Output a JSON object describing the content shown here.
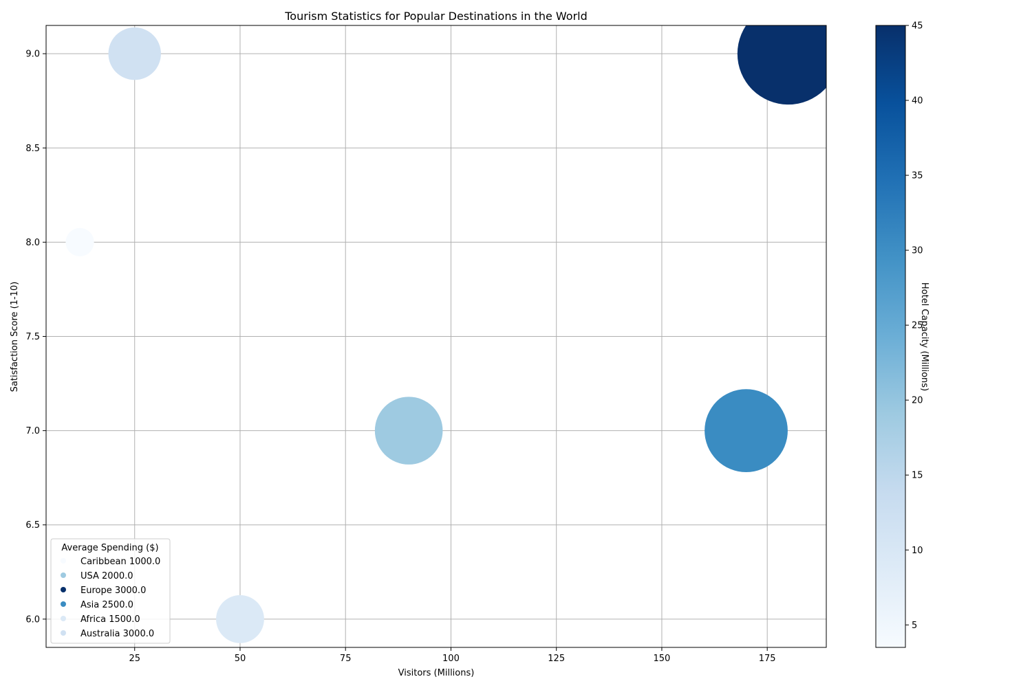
{
  "chart_data": {
    "type": "scatter",
    "title": "Tourism Statistics for Popular Destinations in the World",
    "xlabel": "Visitors (Millions)",
    "ylabel": "Satisfaction Score (1-10)",
    "xlim": [
      4,
      189
    ],
    "ylim": [
      5.85,
      9.15
    ],
    "xticks": [
      25,
      50,
      75,
      100,
      125,
      150,
      175
    ],
    "yticks": [
      6.0,
      6.5,
      7.0,
      7.5,
      8.0,
      8.5,
      9.0
    ],
    "grid": true,
    "points": [
      {
        "name": "Caribbean",
        "x": 12,
        "y": 8.0,
        "hotel_capacity": 3.5,
        "spending": 1000.0,
        "color": "#f7fbff"
      },
      {
        "name": "USA",
        "x": 90,
        "y": 7.0,
        "hotel_capacity": 20,
        "spending": 2000.0,
        "color": "#9ecae1"
      },
      {
        "name": "Europe",
        "x": 180,
        "y": 9.0,
        "hotel_capacity": 45,
        "spending": 3000.0,
        "color": "#08306b"
      },
      {
        "name": "Asia",
        "x": 170,
        "y": 7.0,
        "hotel_capacity": 30,
        "spending": 2500.0,
        "color": "#3a8cc2"
      },
      {
        "name": "Africa",
        "x": 50,
        "y": 6.0,
        "hotel_capacity": 10,
        "spending": 1500.0,
        "color": "#dbe9f6"
      },
      {
        "name": "Australia",
        "x": 25,
        "y": 9.0,
        "hotel_capacity": 12,
        "spending": 3000.0,
        "color": "#d0e1f2"
      }
    ],
    "legend": {
      "title": "Average Spending ($)",
      "placement": "lower-left",
      "entries": [
        {
          "label": "Caribbean 1000.0",
          "color": "#f7fbff"
        },
        {
          "label": "USA 2000.0",
          "color": "#9ecae1"
        },
        {
          "label": "Europe 3000.0",
          "color": "#08306b"
        },
        {
          "label": "Asia 2500.0",
          "color": "#3a8cc2"
        },
        {
          "label": "Africa 1500.0",
          "color": "#dbe9f6"
        },
        {
          "label": "Australia 3000.0",
          "color": "#d0e1f2"
        }
      ]
    },
    "colorbar": {
      "label": "Hotel Capacity (Millions)",
      "range": [
        3.5,
        45
      ],
      "ticks": [
        5,
        10,
        15,
        20,
        25,
        30,
        35,
        40,
        45
      ],
      "colormap": "Blues"
    }
  }
}
